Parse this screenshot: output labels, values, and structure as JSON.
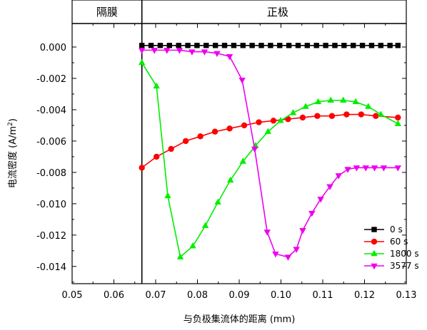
{
  "chart_data": {
    "type": "line",
    "regions": [
      "隔膜",
      "正极"
    ],
    "separator_x": 0.0667,
    "xlabel": "与负极集流体的距离 (mm)",
    "ylabel_main": "电流密度 (A/m",
    "ylabel_sup": "2",
    "ylabel_close": ")",
    "xlim": [
      0.05,
      0.13
    ],
    "ylim": [
      -0.0151,
      0.0015
    ],
    "x_ticks": [
      0.05,
      0.06,
      0.07,
      0.08,
      0.09,
      0.1,
      0.11,
      0.12,
      0.13
    ],
    "x_tick_labels": [
      "0.05",
      "0.06",
      "0.07",
      "0.08",
      "0.09",
      "0.10",
      "0.11",
      "0.12",
      "0.13"
    ],
    "y_ticks": [
      0.0,
      -0.002,
      -0.004,
      -0.006,
      -0.008,
      -0.01,
      -0.012,
      -0.014
    ],
    "y_tick_labels": [
      "0.000",
      "-0.002",
      "-0.004",
      "-0.006",
      "-0.008",
      "-0.010",
      "-0.012",
      "-0.014"
    ],
    "legend_position": "bottom-right",
    "grid": false,
    "series": [
      {
        "name": "0 s",
        "color": "#000000",
        "marker": "square",
        "x": [
          0.0667,
          0.0689,
          0.0711,
          0.0733,
          0.0755,
          0.0777,
          0.0799,
          0.0821,
          0.0843,
          0.0865,
          0.0887,
          0.0909,
          0.0931,
          0.0953,
          0.0975,
          0.0997,
          0.1019,
          0.1041,
          0.1063,
          0.1085,
          0.1107,
          0.1129,
          0.1151,
          0.1173,
          0.1195,
          0.1217,
          0.1239,
          0.1261,
          0.128
        ],
        "y": [
          0.0001,
          0.0001,
          0.0001,
          0.0001,
          0.0001,
          0.0001,
          0.0001,
          0.0001,
          0.0001,
          0.0001,
          0.0001,
          0.0001,
          0.0001,
          0.0001,
          0.0001,
          0.0001,
          0.0001,
          0.0001,
          0.0001,
          0.0001,
          0.0001,
          0.0001,
          0.0001,
          0.0001,
          0.0001,
          0.0001,
          0.0001,
          0.0001,
          0.0001
        ]
      },
      {
        "name": "60 s",
        "color": "#ff0000",
        "marker": "circle",
        "x": [
          0.0667,
          0.0702,
          0.0737,
          0.0772,
          0.0807,
          0.0842,
          0.0877,
          0.0912,
          0.0947,
          0.0982,
          0.1017,
          0.1052,
          0.1087,
          0.1122,
          0.1157,
          0.1192,
          0.1227,
          0.128
        ],
        "y": [
          -0.0077,
          -0.007,
          -0.0065,
          -0.006,
          -0.0057,
          -0.0054,
          -0.0052,
          -0.005,
          -0.0048,
          -0.0047,
          -0.0046,
          -0.0045,
          -0.0044,
          -0.0044,
          -0.0043,
          -0.0043,
          -0.0044,
          -0.0045
        ]
      },
      {
        "name": "1800 s",
        "color": "#00ee00",
        "marker": "triangle-up",
        "x": [
          0.0667,
          0.0702,
          0.0729,
          0.0759,
          0.0789,
          0.0819,
          0.0849,
          0.0879,
          0.0909,
          0.0939,
          0.0969,
          0.0999,
          0.1029,
          0.1059,
          0.1089,
          0.1119,
          0.1149,
          0.1179,
          0.1209,
          0.1239,
          0.128
        ],
        "y": [
          -0.001,
          -0.0025,
          -0.0095,
          -0.0134,
          -0.0127,
          -0.0114,
          -0.0099,
          -0.0085,
          -0.0073,
          -0.0063,
          -0.0054,
          -0.0047,
          -0.0042,
          -0.0038,
          -0.0035,
          -0.0034,
          -0.0034,
          -0.0035,
          -0.0038,
          -0.0043,
          -0.0049
        ]
      },
      {
        "name": "3577 s",
        "color": "#ee00ee",
        "marker": "triangle-down",
        "x": [
          0.0667,
          0.0697,
          0.0727,
          0.0757,
          0.0787,
          0.0817,
          0.0847,
          0.0877,
          0.0907,
          0.0937,
          0.0967,
          0.0987,
          0.1017,
          0.1037,
          0.1052,
          0.1074,
          0.1095,
          0.1117,
          0.1138,
          0.116,
          0.1181,
          0.1203,
          0.1224,
          0.1246,
          0.128
        ],
        "y": [
          -0.0002,
          -0.0002,
          -0.0002,
          -0.0002,
          -0.0003,
          -0.0003,
          -0.0004,
          -0.0006,
          -0.0021,
          -0.0065,
          -0.0118,
          -0.0132,
          -0.0134,
          -0.0129,
          -0.0117,
          -0.0106,
          -0.0097,
          -0.0089,
          -0.0082,
          -0.0078,
          -0.0077,
          -0.0077,
          -0.0077,
          -0.0077,
          -0.0077
        ]
      }
    ]
  }
}
